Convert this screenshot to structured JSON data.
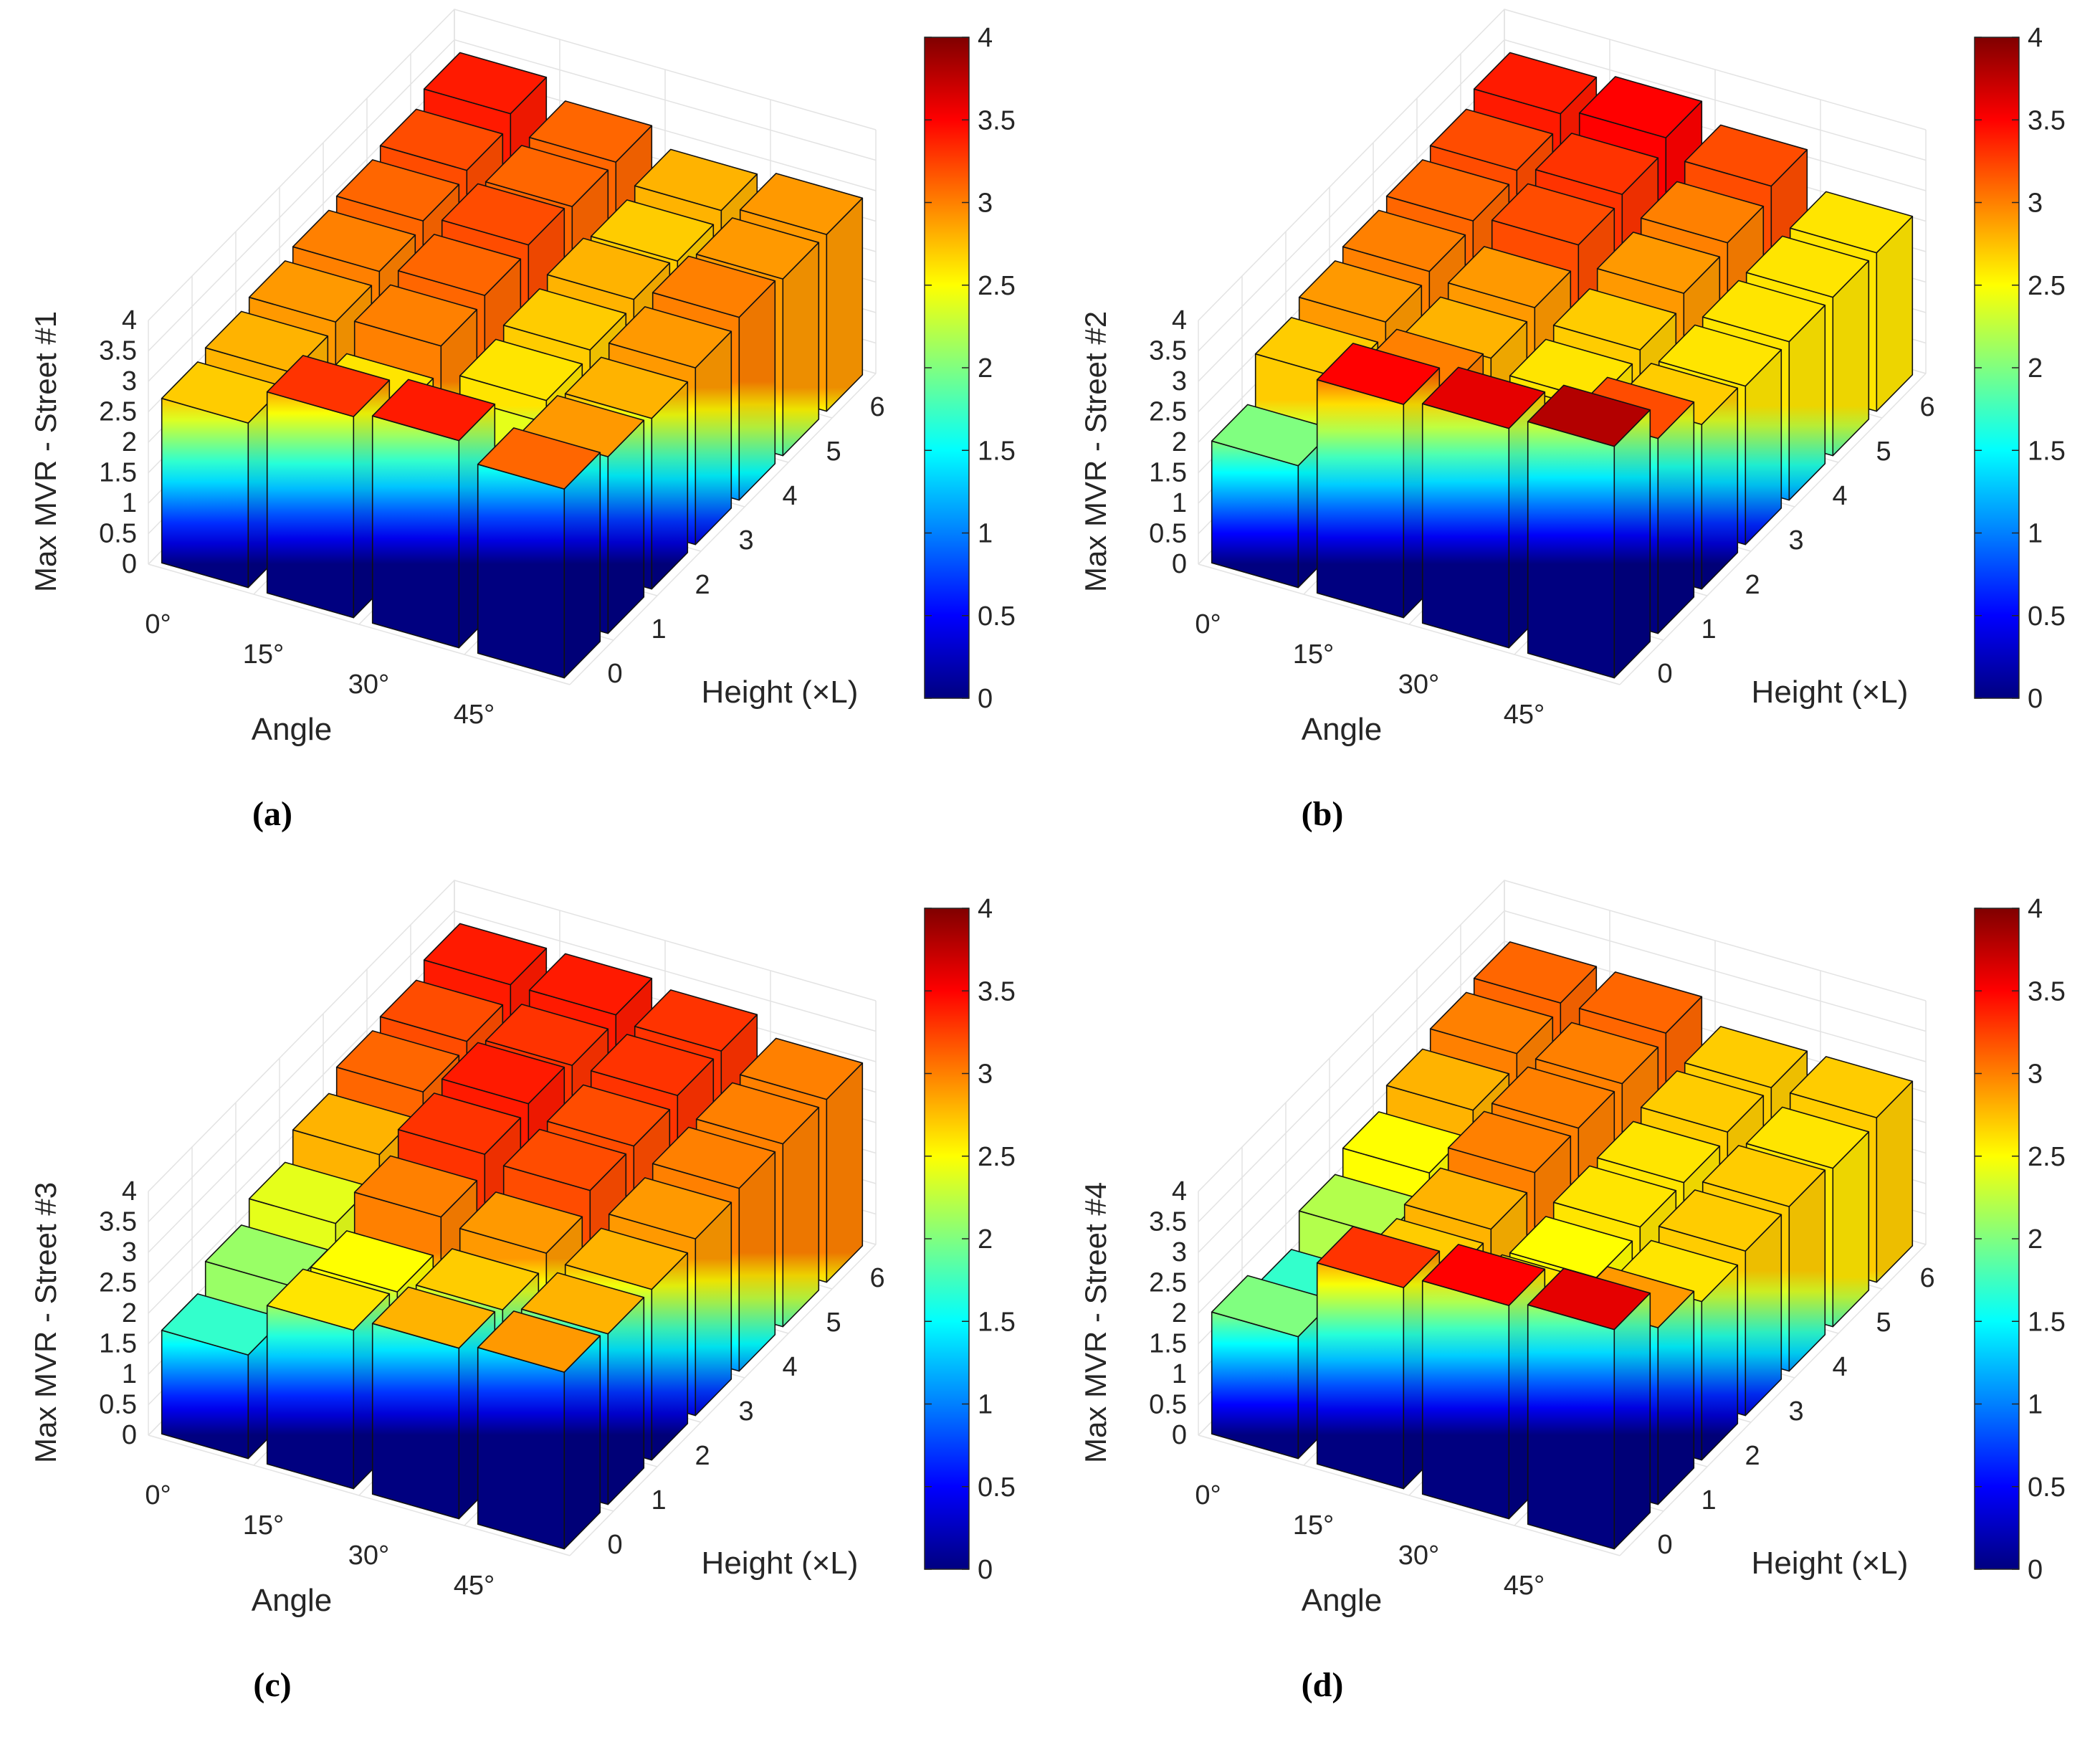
{
  "figure": {
    "title": ""
  },
  "colormap": "jet",
  "colorbar": {
    "ticks": [
      "0",
      "0.5",
      "1",
      "1.5",
      "2",
      "2.5",
      "3",
      "3.5",
      "4"
    ],
    "min": 0,
    "max": 4
  },
  "chart_data": [
    {
      "type": "bar3d",
      "panel_label": "(a)",
      "zlabel": "Max MVR - Street #1",
      "xlabel": "Angle",
      "ylabel": "Height (×L)",
      "x_ticks": [
        "0°",
        "15°",
        "30°",
        "45°"
      ],
      "y_ticks": [
        "0",
        "1",
        "2",
        "3",
        "4",
        "5",
        "6"
      ],
      "z_ticks": [
        "0",
        "0.5",
        "1",
        "1.5",
        "2",
        "2.5",
        "3",
        "3.5",
        "4"
      ],
      "zlim": [
        0,
        4
      ],
      "values": [
        [
          2.7,
          3.3,
          3.4,
          3.1
        ],
        [
          2.8,
          2.6,
          2.4,
          2.9
        ],
        [
          2.9,
          3.0,
          2.6,
          2.8
        ],
        [
          3.0,
          3.1,
          2.7,
          2.9
        ],
        [
          3.1,
          3.2,
          2.8,
          3.0
        ],
        [
          3.2,
          3.1,
          2.7,
          2.9
        ],
        [
          3.4,
          3.1,
          2.8,
          2.9
        ]
      ]
    },
    {
      "type": "bar3d",
      "panel_label": "(b)",
      "zlabel": "Max MVR - Street #2",
      "xlabel": "Angle",
      "ylabel": "Height (×L)",
      "x_ticks": [
        "0°",
        "15°",
        "30°",
        "45°"
      ],
      "y_ticks": [
        "0",
        "1",
        "2",
        "3",
        "4",
        "5",
        "6"
      ],
      "z_ticks": [
        "0",
        "0.5",
        "1",
        "1.5",
        "2",
        "2.5",
        "3",
        "3.5",
        "4"
      ],
      "zlim": [
        0,
        4
      ],
      "values": [
        [
          2.0,
          3.5,
          3.6,
          3.8
        ],
        [
          2.7,
          3.0,
          2.6,
          3.2
        ],
        [
          2.9,
          2.8,
          2.6,
          2.7
        ],
        [
          3.0,
          2.9,
          2.7,
          2.6
        ],
        [
          3.1,
          3.2,
          2.9,
          2.6
        ],
        [
          3.2,
          3.3,
          3.0,
          2.6
        ],
        [
          3.4,
          3.5,
          3.2,
          2.6
        ]
      ]
    },
    {
      "type": "bar3d",
      "panel_label": "(c)",
      "zlabel": "Max MVR - Street #3",
      "xlabel": "Angle",
      "ylabel": "Height (×L)",
      "x_ticks": [
        "0°",
        "15°",
        "30°",
        "45°"
      ],
      "y_ticks": [
        "0",
        "1",
        "2",
        "3",
        "4",
        "5",
        "6"
      ],
      "z_ticks": [
        "0",
        "0.5",
        "1",
        "1.5",
        "2",
        "2.5",
        "3",
        "3.5",
        "4"
      ],
      "zlim": [
        0,
        4
      ],
      "values": [
        [
          1.7,
          2.6,
          2.8,
          2.9
        ],
        [
          2.1,
          2.5,
          2.7,
          2.8
        ],
        [
          2.4,
          3.0,
          2.9,
          2.8
        ],
        [
          2.8,
          3.3,
          3.2,
          2.9
        ],
        [
          3.1,
          3.4,
          3.2,
          3.0
        ],
        [
          3.2,
          3.3,
          3.3,
          3.0
        ],
        [
          3.4,
          3.4,
          3.3,
          3.0
        ]
      ]
    },
    {
      "type": "bar3d",
      "panel_label": "(d)",
      "zlabel": "Max MVR - Street #4",
      "xlabel": "Angle",
      "ylabel": "Height (×L)",
      "x_ticks": [
        "0°",
        "15°",
        "30°",
        "45°"
      ],
      "y_ticks": [
        "0",
        "1",
        "2",
        "3",
        "4",
        "5",
        "6"
      ],
      "z_ticks": [
        "0",
        "0.5",
        "1",
        "1.5",
        "2",
        "2.5",
        "3",
        "3.5",
        "4"
      ],
      "zlim": [
        0,
        4
      ],
      "values": [
        [
          2.0,
          3.3,
          3.5,
          3.6
        ],
        [
          1.7,
          2.7,
          2.6,
          2.9
        ],
        [
          2.2,
          2.8,
          2.5,
          2.6
        ],
        [
          2.5,
          3.0,
          2.6,
          2.7
        ],
        [
          2.8,
          3.0,
          2.6,
          2.7
        ],
        [
          3.0,
          3.0,
          2.7,
          2.6
        ],
        [
          3.1,
          3.1,
          2.7,
          2.7
        ]
      ]
    }
  ]
}
